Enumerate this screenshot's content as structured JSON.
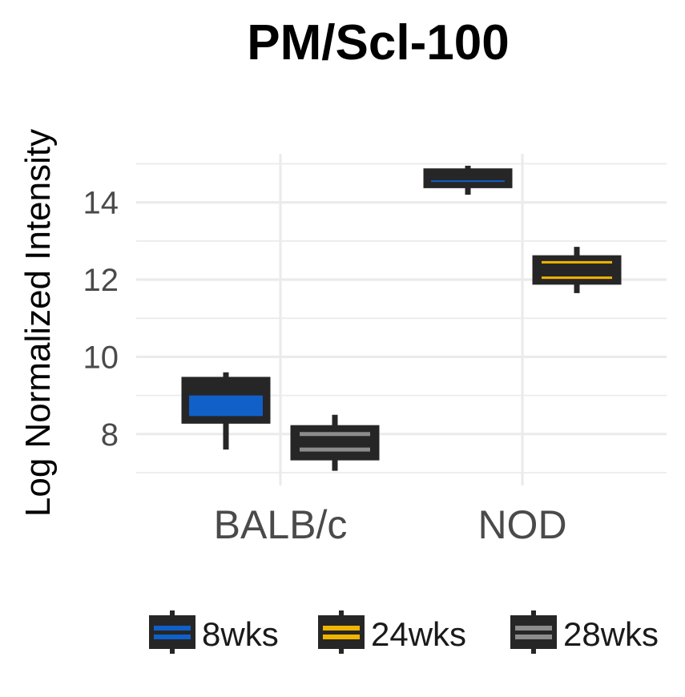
{
  "chart_data": {
    "type": "boxplot",
    "title": "PM/Scl-100",
    "xlabel": "",
    "ylabel": "Log Normalized Intensity",
    "ylim": [
      7,
      15.3
    ],
    "yticks": [
      8,
      10,
      12,
      14
    ],
    "categories": [
      "BALB/c",
      "NOD"
    ],
    "series": [
      {
        "name": "8wks",
        "color": "#1060c8",
        "boxes": [
          {
            "category": "BALB/c",
            "min": 7.6,
            "q1": 8.3,
            "median": 9.0,
            "q3": 9.45,
            "max": 9.6
          },
          {
            "category": "NOD",
            "min": 14.2,
            "q1": 14.4,
            "median": 14.55,
            "q3": 14.85,
            "max": 14.95
          }
        ]
      },
      {
        "name": "24wks",
        "color": "#f0b400",
        "boxes": [
          {
            "category": "NOD",
            "min": 11.65,
            "q1": 11.9,
            "median": 12.05,
            "q3": 12.6,
            "max": 12.85,
            "mean": 12.45
          }
        ]
      },
      {
        "name": "28wks",
        "color": "#8c8c8c",
        "boxes": [
          {
            "category": "BALB/c",
            "min": 7.05,
            "q1": 7.35,
            "median": 7.6,
            "q3": 8.2,
            "max": 8.5,
            "mean": 8.0
          }
        ]
      }
    ],
    "legend": {
      "position": "bottom",
      "entries": [
        {
          "label": "8wks",
          "color": "#1060c8"
        },
        {
          "label": "24wks",
          "color": "#f0b400"
        },
        {
          "label": "28wks",
          "color": "#8c8c8c"
        }
      ]
    },
    "grid": true
  }
}
